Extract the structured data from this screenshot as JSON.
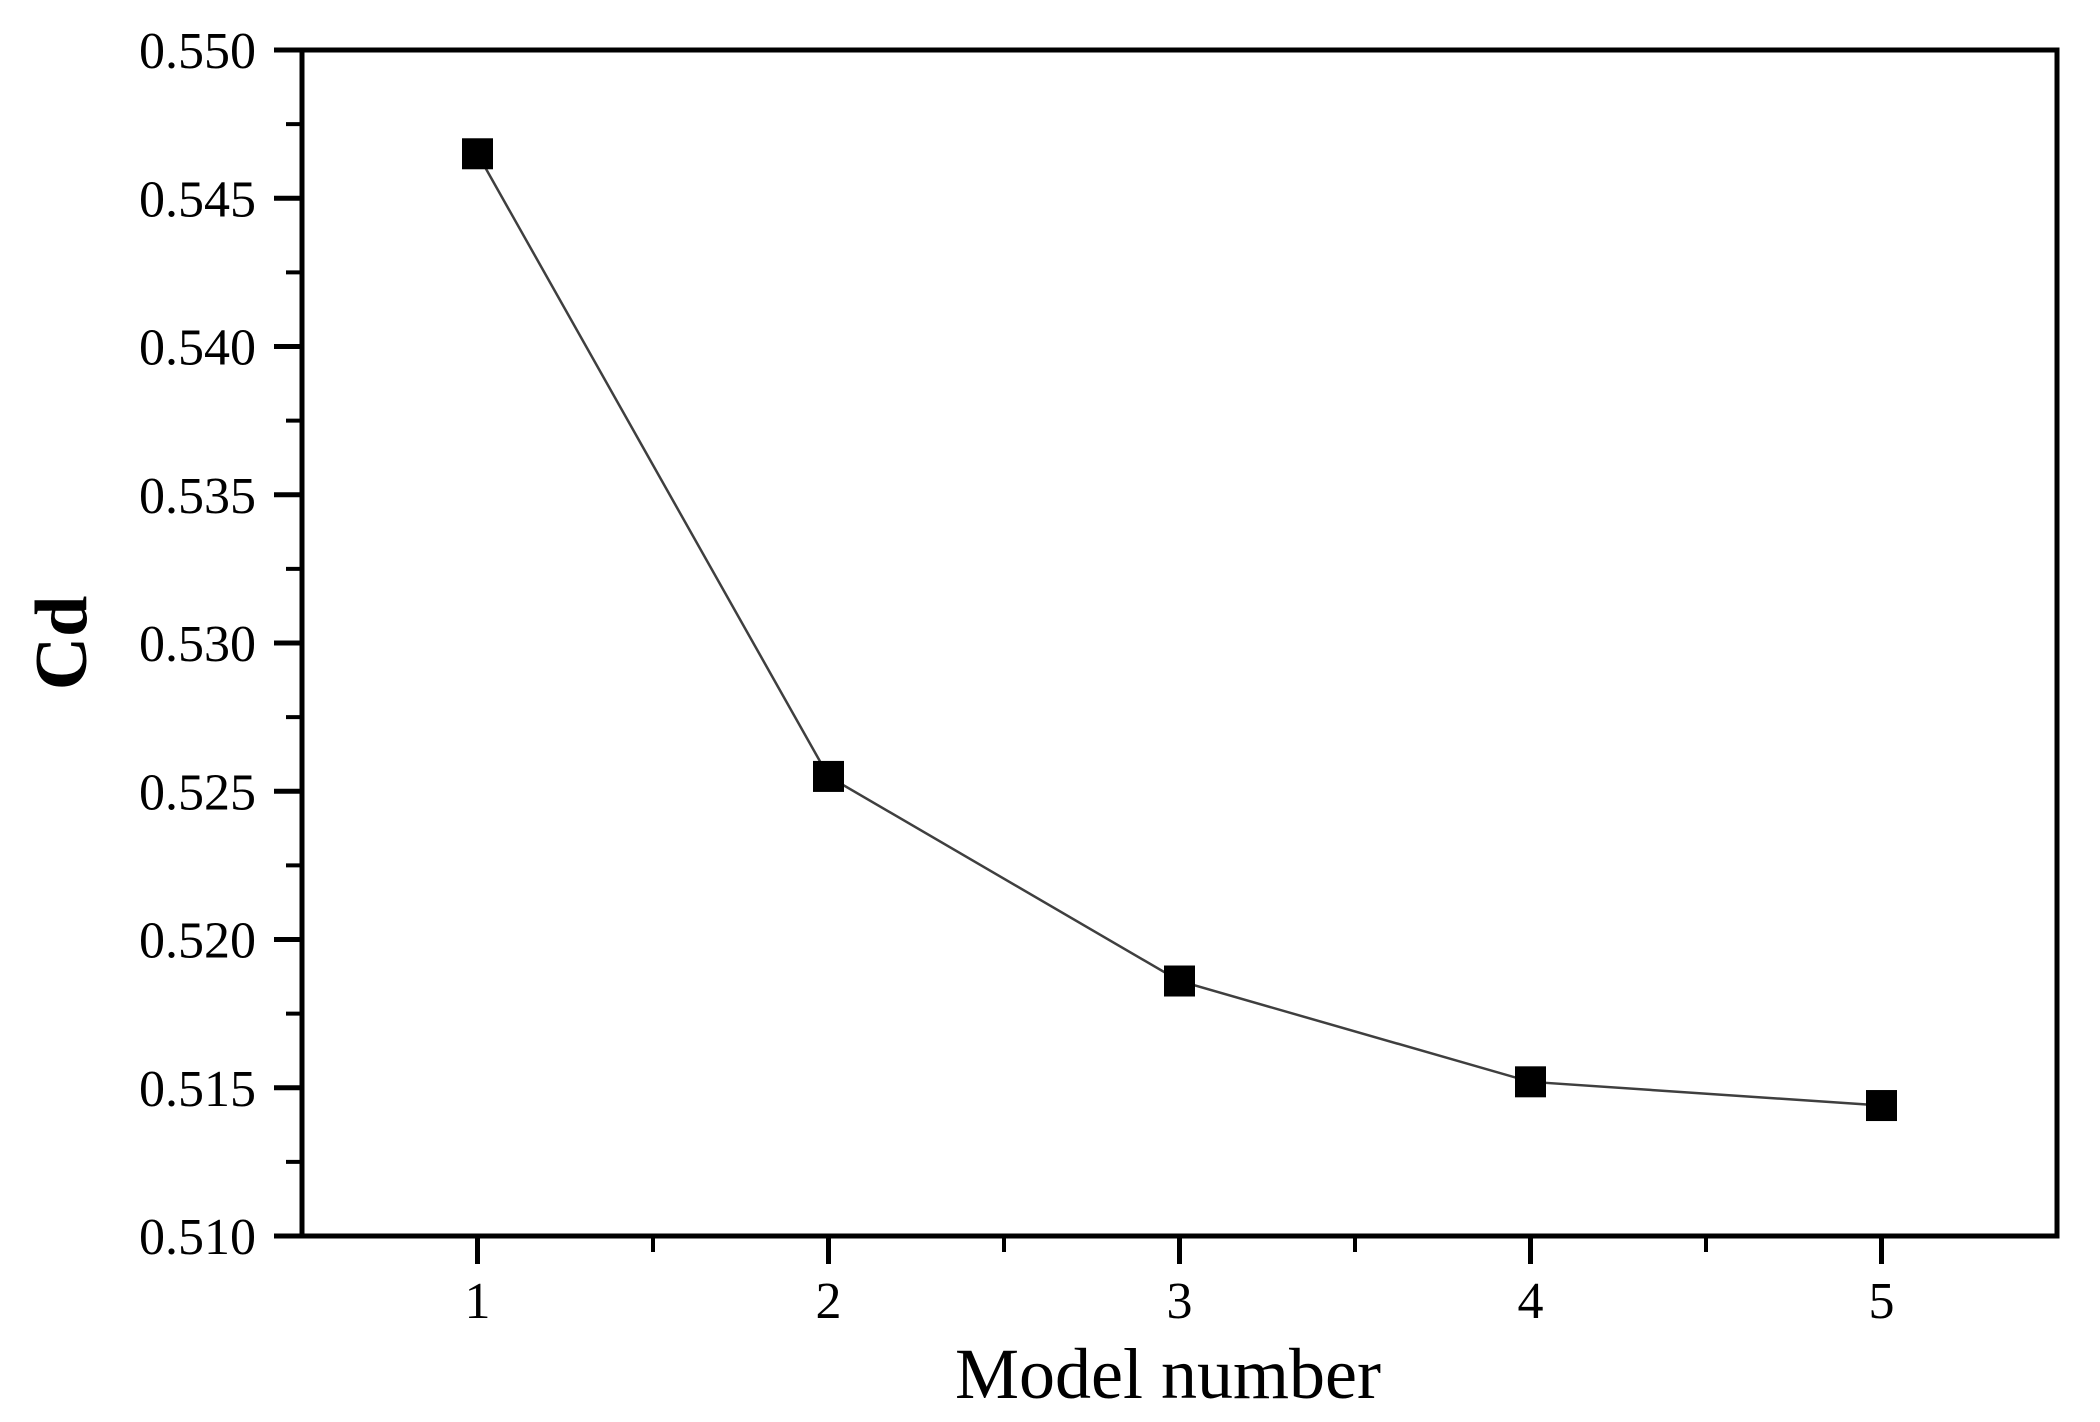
{
  "figure": {
    "background": "#ffffff"
  },
  "chart_data": {
    "type": "line",
    "title": "",
    "xlabel": "Model number",
    "ylabel": "Cd",
    "x": [
      1,
      2,
      3,
      4,
      5
    ],
    "series": [
      {
        "name": "Cd",
        "values": [
          0.5465,
          0.5255,
          0.5186,
          0.5152,
          0.5144
        ]
      }
    ],
    "xlim": [
      0.5,
      5.5
    ],
    "ylim": [
      0.51,
      0.55
    ],
    "x_major_ticks": [
      1,
      2,
      3,
      4,
      5
    ],
    "x_tick_labels": [
      "1",
      "2",
      "3",
      "4",
      "5"
    ],
    "x_minor_ticks": [
      1.5,
      2.5,
      3.5,
      4.5
    ],
    "y_major_ticks": [
      0.55,
      0.545,
      0.54,
      0.535,
      0.53,
      0.525,
      0.52,
      0.515,
      0.51
    ],
    "y_tick_labels": [
      "0.550",
      "0.545",
      "0.540",
      "0.535",
      "0.530",
      "0.525",
      "0.520",
      "0.515",
      "0.510"
    ],
    "y_minor_ticks": [
      0.5475,
      0.5425,
      0.5375,
      0.5325,
      0.5275,
      0.5225,
      0.5175,
      0.5125
    ],
    "grid": false,
    "legend": null,
    "marker": "square",
    "marker_color": "#000000",
    "line_color": "#3f3f3f",
    "axis_color": "#000000",
    "tick_label_color": "#000000"
  }
}
